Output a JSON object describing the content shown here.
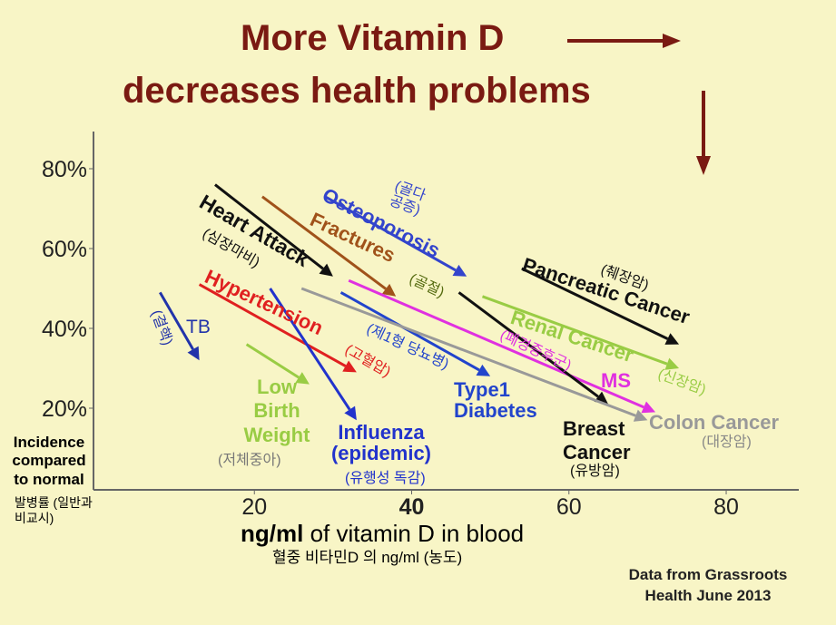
{
  "chart_data": {
    "type": "arrows",
    "title": [
      "More Vitamin D",
      "decreases health problems"
    ],
    "xlabel": [
      "ng/ml",
      "of vitamin D in blood"
    ],
    "xlabel_ko": "혈중 비타민D 의 ng/ml (농도)",
    "ylabel": "Incidence compared to normal",
    "ylabel_ko": "발병률 (일반과 비교시)",
    "source": "Data from Grassroots Health June 2013",
    "xlim": [
      0,
      89
    ],
    "ylim": [
      0,
      90
    ],
    "xticks": [
      20,
      40,
      60,
      80
    ],
    "yticks": [
      {
        "value": 20,
        "label": "20%"
      },
      {
        "value": 40,
        "label": "40%"
      },
      {
        "value": 60,
        "label": "60%"
      },
      {
        "value": 80,
        "label": "80%"
      }
    ],
    "series": [
      {
        "name": "Heart Attack",
        "note": "(심장마비)",
        "color": "#111111",
        "x": [
          15,
          30
        ],
        "values": [
          76,
          53
        ]
      },
      {
        "name": "Fractures",
        "note": "(골절)",
        "color": "#a0521a",
        "x": [
          21,
          38
        ],
        "values": [
          73,
          48
        ]
      },
      {
        "name": "Osteoporosis",
        "note": "(골다공증)",
        "color": "#3344cc",
        "x": [
          29,
          47
        ],
        "values": [
          73,
          53
        ]
      },
      {
        "name": "Pancreatic Cancer",
        "note": "(췌장암)",
        "color": "#111111",
        "x": [
          54,
          74
        ],
        "values": [
          55,
          36
        ]
      },
      {
        "name": "Hypertension",
        "note": "(고혈압)",
        "color": "#e02020",
        "x": [
          13,
          33
        ],
        "values": [
          51,
          29
        ]
      },
      {
        "name": "TB",
        "note": "(결핵)",
        "color": "#2233aa",
        "x": [
          8,
          13
        ],
        "values": [
          49,
          32
        ]
      },
      {
        "name": "Renal Cancer",
        "note": "(신장암)",
        "color": "#99cc44",
        "x": [
          49,
          74
        ],
        "values": [
          48,
          30
        ]
      },
      {
        "name": "MS",
        "note": "(폐경증후군)",
        "color": "#e030e0",
        "x": [
          32,
          71
        ],
        "values": [
          52,
          19
        ]
      },
      {
        "name": "Type1 Diabetes",
        "note": "(제1형 당뇨병)",
        "color": "#2244cc",
        "x": [
          31,
          50
        ],
        "values": [
          49,
          28
        ]
      },
      {
        "name": "Low Birth Weight",
        "note": "(저체중아)",
        "color": "#99cc44",
        "x": [
          19,
          27
        ],
        "values": [
          36,
          26
        ]
      },
      {
        "name": "Influenza (epidemic)",
        "note": "(유행성 독감)",
        "color": "#2233cc",
        "x": [
          22,
          33
        ],
        "values": [
          50,
          17
        ]
      },
      {
        "name": "Breast Cancer",
        "note": "(유방암)",
        "color": "#111111",
        "x": [
          46,
          65
        ],
        "values": [
          49,
          21
        ]
      },
      {
        "name": "Colon Cancer",
        "note": "(대장암)",
        "color": "#999999",
        "x": [
          26,
          70
        ],
        "values": [
          50,
          17
        ]
      }
    ]
  }
}
